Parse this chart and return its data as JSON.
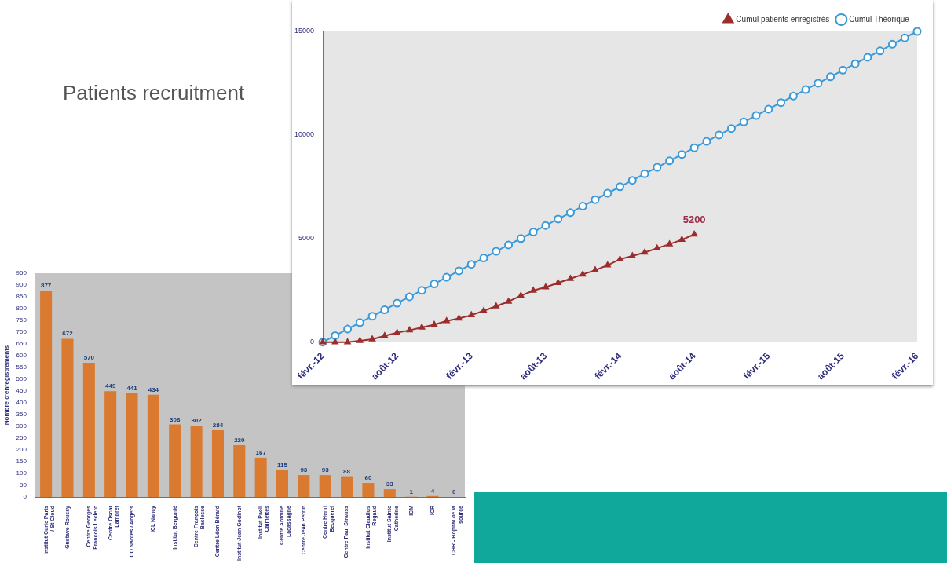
{
  "chart_data": [
    {
      "type": "line",
      "title": "Patients recruitment",
      "series": [
        {
          "name": "Cumul Théorique",
          "color": "#3a9ad9",
          "marker": "circle",
          "x": [
            "2012-02",
            "2012-03",
            "2012-04",
            "2012-05",
            "2012-06",
            "2012-07",
            "2012-08",
            "2012-09",
            "2012-10",
            "2012-11",
            "2012-12",
            "2013-01",
            "2013-02",
            "2013-03",
            "2013-04",
            "2013-05",
            "2013-06",
            "2013-07",
            "2013-08",
            "2013-09",
            "2013-10",
            "2013-11",
            "2013-12",
            "2014-01",
            "2014-02",
            "2014-03",
            "2014-04",
            "2014-05",
            "2014-06",
            "2014-07",
            "2014-08",
            "2014-09",
            "2014-10",
            "2014-11",
            "2014-12",
            "2015-01",
            "2015-02",
            "2015-03",
            "2015-04",
            "2015-05",
            "2015-06",
            "2015-07",
            "2015-08",
            "2015-09",
            "2015-10",
            "2015-11",
            "2015-12",
            "2016-01",
            "2016-02"
          ],
          "values": [
            0,
            310,
            630,
            940,
            1250,
            1560,
            1880,
            2190,
            2500,
            2810,
            3130,
            3440,
            3750,
            4060,
            4380,
            4690,
            5000,
            5310,
            5630,
            5940,
            6250,
            6560,
            6880,
            7190,
            7500,
            7810,
            8130,
            8440,
            8750,
            9060,
            9380,
            9690,
            10000,
            10310,
            10630,
            10940,
            11250,
            11560,
            11880,
            12190,
            12500,
            12810,
            13130,
            13440,
            13750,
            14060,
            14380,
            14690,
            15000
          ]
        },
        {
          "name": "Cumul patients enregistrés",
          "color": "#9b2d2d",
          "marker": "triangle",
          "x": [
            "2012-02",
            "2012-03",
            "2012-04",
            "2012-05",
            "2012-06",
            "2012-07",
            "2012-08",
            "2012-09",
            "2012-10",
            "2012-11",
            "2012-12",
            "2013-01",
            "2013-02",
            "2013-03",
            "2013-04",
            "2013-05",
            "2013-06",
            "2013-07",
            "2013-08",
            "2013-09",
            "2013-10",
            "2013-11",
            "2013-12",
            "2014-01",
            "2014-02",
            "2014-03",
            "2014-04",
            "2014-05",
            "2014-06",
            "2014-07",
            "2014-08"
          ],
          "values": [
            0,
            0,
            0,
            60,
            140,
            300,
            450,
            570,
            710,
            840,
            1020,
            1140,
            1300,
            1510,
            1730,
            1960,
            2240,
            2490,
            2650,
            2860,
            3060,
            3270,
            3470,
            3710,
            4000,
            4160,
            4330,
            4530,
            4730,
            4940,
            5200
          ]
        }
      ],
      "xlim": [
        "2012-02",
        "2016-02"
      ],
      "xticks": [
        {
          "value": "2012-02",
          "label": "févr.-12"
        },
        {
          "value": "2012-08",
          "label": "août-12"
        },
        {
          "value": "2013-02",
          "label": "févr.-13"
        },
        {
          "value": "2013-08",
          "label": "août-13"
        },
        {
          "value": "2014-02",
          "label": "févr.-14"
        },
        {
          "value": "2014-08",
          "label": "août-14"
        },
        {
          "value": "2015-02",
          "label": "févr.-15"
        },
        {
          "value": "2015-08",
          "label": "août-15"
        },
        {
          "value": "2016-02",
          "label": "févr.-16"
        }
      ],
      "ylim": [
        0,
        15000
      ],
      "yticks": [
        0,
        5000,
        10000,
        15000
      ],
      "annotations": [
        {
          "text": "5200",
          "x": "2014-08",
          "y": 5200
        }
      ],
      "legend": "top right",
      "grid": false,
      "line_style": "solid"
    },
    {
      "type": "bar",
      "ylabel": "Nombre d'enregistrements",
      "categories": [
        "Institut Curie Paris\n/ St Cloud",
        "Gustave Roussy",
        "Centre Georges\nFrançois Leclerc",
        "Centre Oscar\nLambret",
        "ICO Nantes / Angers",
        "ICL Nancy",
        "Institut Bergonié",
        "Centre François\nBaclesse",
        "Centre Léon Bérard",
        "Institut Jean Godinot",
        "Institut Paoli\nCalmettes",
        "Centre Antoine\nLacassagne",
        "Centre Jean Perrin",
        "Centre Henri\nBecquerel",
        "Centre Paul Strauss",
        "Institut Claudius\nRegaud",
        "Institut Sainte\nCatherine",
        "ICM",
        "ICR",
        "CHR - Hôpital de la\nsource"
      ],
      "values": [
        877,
        672,
        570,
        449,
        441,
        434,
        308,
        302,
        284,
        220,
        167,
        115,
        93,
        93,
        88,
        60,
        33,
        1,
        4,
        0
      ],
      "color": "#d97a30",
      "ylim": [
        0,
        950
      ],
      "yticks": [
        0,
        50,
        100,
        150,
        200,
        250,
        300,
        350,
        400,
        450,
        500,
        550,
        600,
        650,
        700,
        750,
        800,
        850,
        900,
        950
      ],
      "data_labels": true,
      "legend": false,
      "grid": false
    }
  ]
}
